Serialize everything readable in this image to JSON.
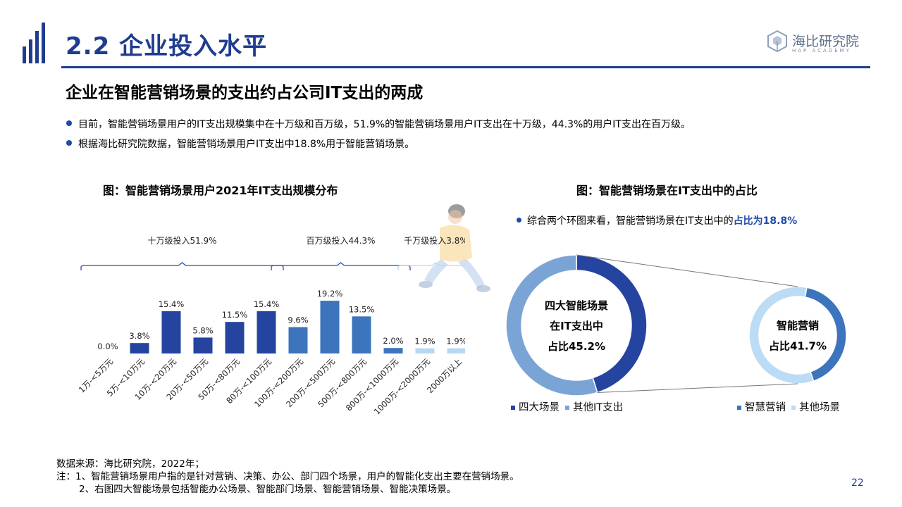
{
  "header": {
    "title": "2.2 企业投入水平",
    "brand_cn": "海比研究院",
    "brand_en": "HAP ACADEMY"
  },
  "subtitle": "企业在智能营销场景的支出约占公司IT支出的两成",
  "bullets": [
    "目前，智能营销场景用户的IT支出规模集中在十万级和百万级，51.9%的智能营销场景用户IT支出在十万级，44.3%的用户IT支出在百万级。",
    "根据海比研究院数据，智能营销场景用户IT支出中18.8%用于智能营销场景。"
  ],
  "left_chart_title": "图：智能营销场景用户2021年IT支出规模分布",
  "right_chart_title": "图：智能营销场景在IT支出中的占比",
  "right_note": {
    "text": "综合两个环图来看，智能营销场景在IT支出中的",
    "highlight": "占比为18.8%"
  },
  "colors": {
    "navy": "#1f3c8f",
    "dark_bar": "#2444a0",
    "mid_bar": "#3c74bd",
    "light_bar": "#b7d8f2",
    "donut_light": "#7ba4d6",
    "donut_pale": "#bcdcf5"
  },
  "chart_data": [
    {
      "type": "bar",
      "title": "图：智能营销场景用户2021年IT支出规模分布",
      "categories": [
        "1万-<5万元",
        "5万-<10万元",
        "10万-<20万元",
        "20万-<50万元",
        "50万-<80万元",
        "80万-<100万元",
        "100万-<200万元",
        "200万-<500万元",
        "500万-<800万元",
        "800万-<1000万元",
        "1000万-<2000万元",
        "2000万以上"
      ],
      "values": [
        0.0,
        3.8,
        15.4,
        5.8,
        11.5,
        15.4,
        9.6,
        19.2,
        13.5,
        2.0,
        1.9,
        1.9
      ],
      "value_labels": [
        "0.0%",
        "3.8%",
        "15.4%",
        "5.8%",
        "11.5%",
        "15.4%",
        "9.6%",
        "19.2%",
        "13.5%",
        "2.0%",
        "1.9%",
        "1.9%"
      ],
      "groups": [
        {
          "label": "十万级投入51.9%",
          "from": 0,
          "to": 5,
          "color": "#2444a0"
        },
        {
          "label": "百万级投入44.3%",
          "from": 6,
          "to": 9,
          "color": "#3c74bd"
        },
        {
          "label": "千万级投入3.8%",
          "from": 10,
          "to": 11,
          "color": "#b7d8f2"
        }
      ]
    },
    {
      "type": "pie",
      "label_lines": [
        "四大智能场景",
        "在IT支出中",
        "占比45.2%"
      ],
      "slices": [
        {
          "name": "四大场景",
          "value": 45.2,
          "color": "#2444a0"
        },
        {
          "name": "其他IT支出",
          "value": 54.8,
          "color": "#7ba4d6"
        }
      ]
    },
    {
      "type": "pie",
      "label_lines": [
        "智能营销",
        "占比41.7%"
      ],
      "slices": [
        {
          "name": "智慧营销",
          "value": 41.7,
          "color": "#3c74bd"
        },
        {
          "name": "其他场景",
          "value": 58.3,
          "color": "#bcdcf5"
        }
      ]
    }
  ],
  "footer": {
    "source": "数据来源：海比研究院，2022年；",
    "note1": "注：1、智能营销场景用户指的是针对营销、决策、办公、部门四个场景，用户的智能化支出主要在营销场景。",
    "note2": "2、右图四大智能场景包括智能办公场景、智能部门场景、智能营销场景、智能决策场景。"
  },
  "page_number": "22"
}
